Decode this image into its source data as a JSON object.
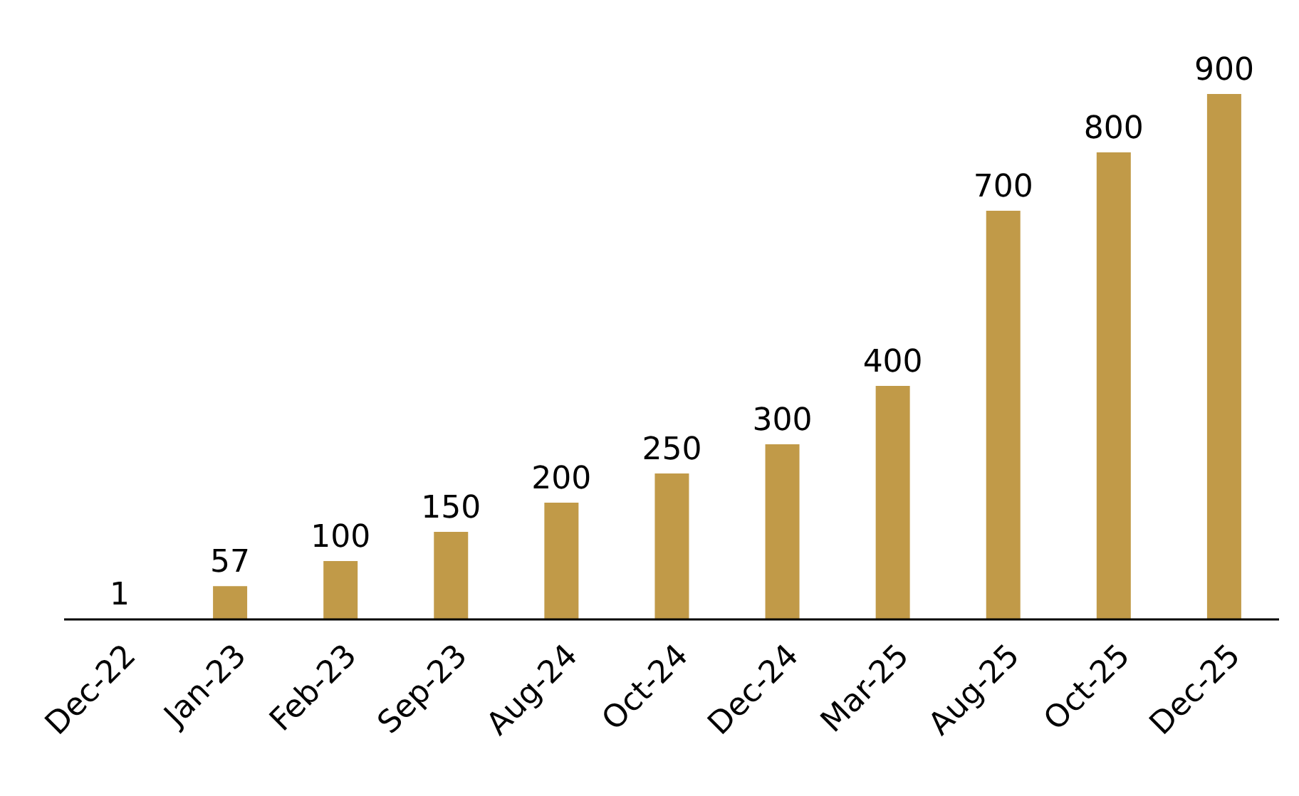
{
  "chart_data": {
    "type": "bar",
    "categories": [
      "Dec-22",
      "Jan-23",
      "Feb-23",
      "Sep-23",
      "Aug-24",
      "Oct-24",
      "Dec-24",
      "Mar-25",
      "Aug-25",
      "Oct-25",
      "Dec-25"
    ],
    "values": [
      1,
      57,
      100,
      150,
      200,
      250,
      300,
      400,
      700,
      800,
      900
    ],
    "color": "#c19a48",
    "data_labels": true,
    "grid": false,
    "legend": false
  }
}
